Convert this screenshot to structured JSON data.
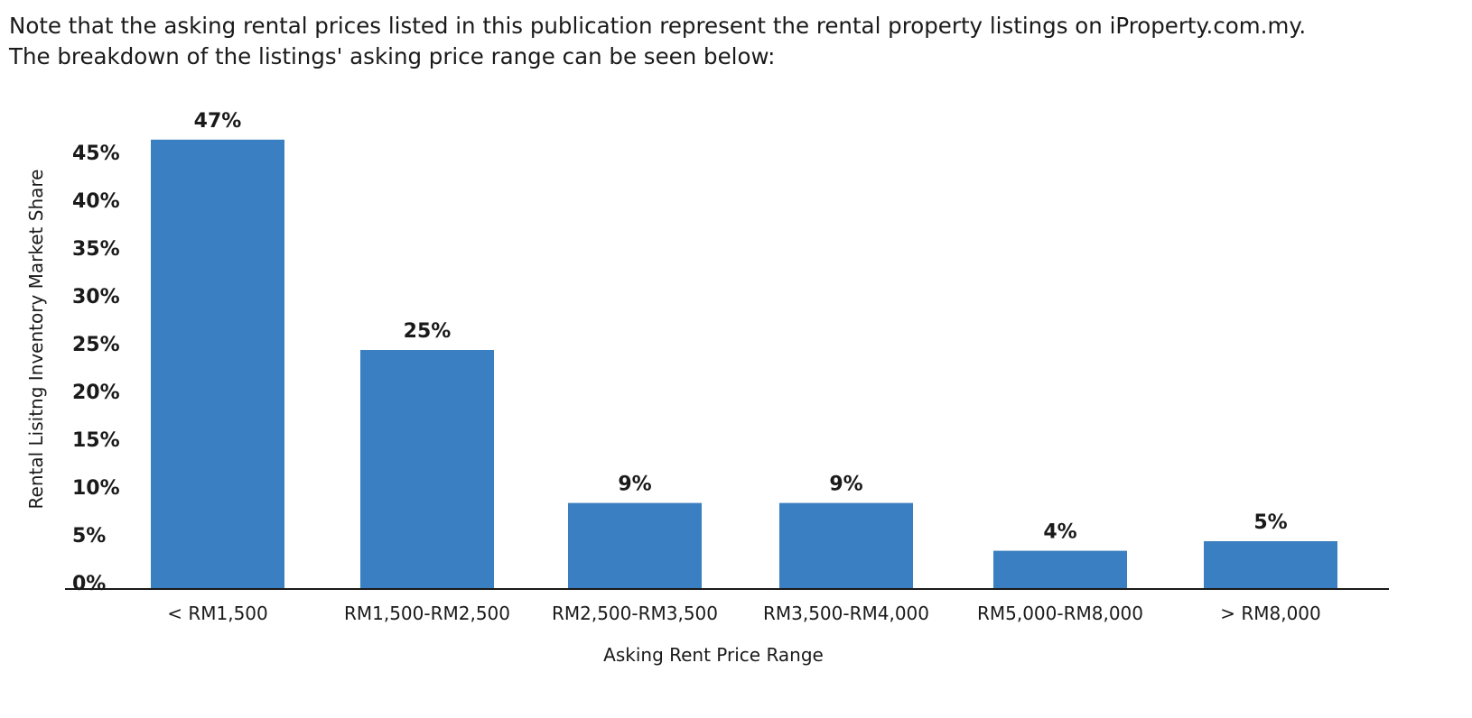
{
  "intro": {
    "line1": "Note that the asking rental prices listed in this publication represent the rental property listings on iProperty.com.my.",
    "line2": "The breakdown of the listings' asking price range can be seen below:"
  },
  "chart_data": {
    "type": "bar",
    "title": "",
    "xlabel": "Asking Rent Price Range",
    "ylabel": "Rental Lisitng Inventory Market Share",
    "categories": [
      "< RM1,500",
      "RM1,500-RM2,500",
      "RM2,500-RM3,500",
      "RM3,500-RM4,000",
      "RM5,000-RM8,000",
      "> RM8,000"
    ],
    "values": [
      47,
      25,
      9,
      9,
      4,
      5
    ],
    "data_labels": [
      "47%",
      "25%",
      "9%",
      "9%",
      "4%",
      "5%"
    ],
    "y_ticks": [
      0,
      5,
      10,
      15,
      20,
      25,
      30,
      35,
      40,
      45
    ],
    "y_tick_labels": [
      "0%",
      "5%",
      "10%",
      "15%",
      "20%",
      "25%",
      "30%",
      "35%",
      "40%",
      "45%"
    ],
    "ylim": [
      0,
      47
    ],
    "grid": false,
    "legend": "none",
    "bar_color": "#3a7fc1",
    "axis_color": "#1a1a1a"
  }
}
